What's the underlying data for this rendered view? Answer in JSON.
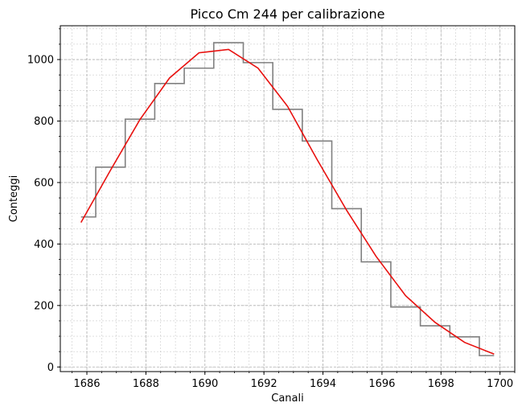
{
  "chart_data": {
    "type": "line",
    "title": "Picco Cm 244 per calibrazione",
    "xlabel": "Canali",
    "ylabel": "Conteggi",
    "xlim": [
      1685.1,
      1700.5
    ],
    "ylim": [
      -15,
      1110
    ],
    "x_ticks": [
      1686,
      1688,
      1690,
      1692,
      1694,
      1696,
      1698,
      1700
    ],
    "y_ticks": [
      0,
      200,
      400,
      600,
      800,
      1000
    ],
    "x_minor_step": 0.5,
    "y_minor_step": 50,
    "grid": true,
    "colors": {
      "histogram": "#808080",
      "fit": "#e8110f",
      "grid": "#b0b0b0"
    },
    "series": [
      {
        "kind": "step-histogram",
        "bin_edges": [
          1685.8,
          1686.3,
          1687.3,
          1688.3,
          1689.3,
          1690.3,
          1691.3,
          1692.3,
          1693.3,
          1694.3,
          1695.3,
          1696.3,
          1697.3,
          1698.3,
          1699.3,
          1699.8
        ],
        "counts": [
          488,
          650,
          806,
          922,
          972,
          1055,
          990,
          838,
          735,
          515,
          342,
          195,
          134,
          98,
          37
        ]
      },
      {
        "kind": "fit-line",
        "x": [
          1685.8,
          1686.8,
          1687.8,
          1688.8,
          1689.8,
          1690.8,
          1691.8,
          1692.8,
          1693.8,
          1694.8,
          1695.8,
          1696.8,
          1697.8,
          1698.8,
          1699.8
        ],
        "y": [
          470,
          640,
          805,
          940,
          1022,
          1033,
          972,
          848,
          675,
          510,
          360,
          232,
          145,
          80,
          42
        ]
      }
    ]
  }
}
